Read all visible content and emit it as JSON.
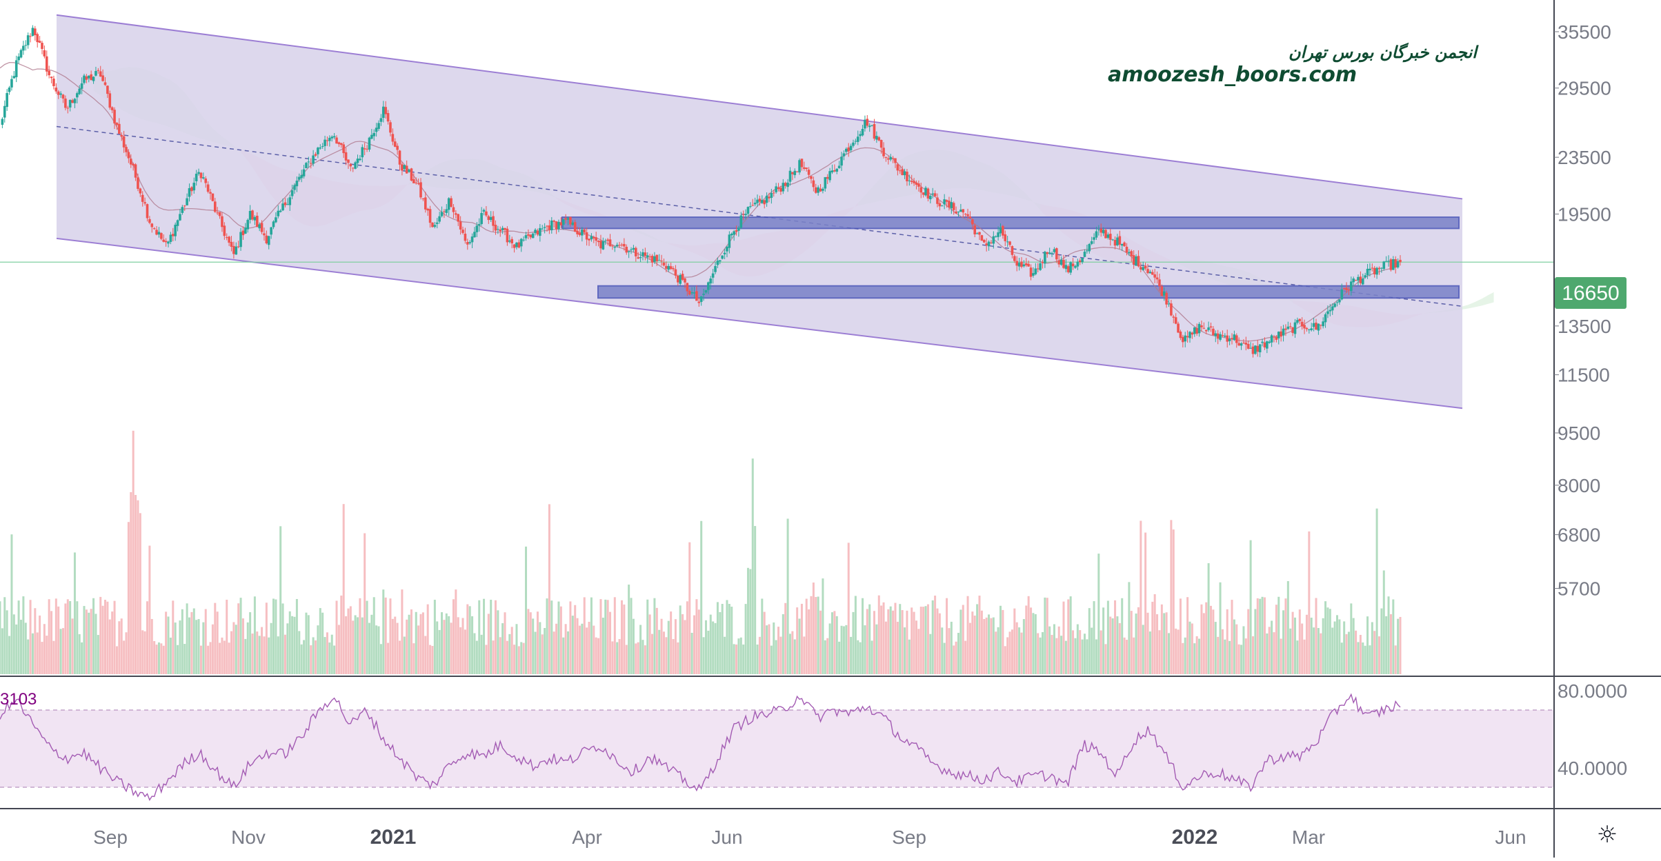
{
  "chart_data": {
    "type": "candlestick",
    "watermark": {
      "line1": "انجمن خبرگان بورس تهران",
      "line2": "amoozesh_boors.com"
    },
    "current_price": "16650",
    "current_price_value": 16650,
    "y_ticks": [
      "35500",
      "29500",
      "23500",
      "19500",
      "16650",
      "13500",
      "11500",
      "9500",
      "8000",
      "6800",
      "5700"
    ],
    "y_tick_values": [
      35500,
      29500,
      23500,
      19500,
      13500,
      11500,
      9500,
      8000,
      6800,
      5700
    ],
    "y_scale": "log",
    "x_ticks": [
      {
        "label": "Sep",
        "bold": false
      },
      {
        "label": "Nov",
        "bold": false
      },
      {
        "label": "2021",
        "bold": true
      },
      {
        "label": "Apr",
        "bold": false
      },
      {
        "label": "Jun",
        "bold": false
      },
      {
        "label": "Sep",
        "bold": false
      },
      {
        "label": "2022",
        "bold": true
      },
      {
        "label": "Mar",
        "bold": false
      },
      {
        "label": "Jun",
        "bold": false
      }
    ],
    "price_series_close": [
      26000,
      32000,
      36000,
      30500,
      27500,
      30200,
      31000,
      26000,
      22500,
      19000,
      17500,
      20000,
      22500,
      19500,
      17000,
      19500,
      18000,
      20000,
      22000,
      24000,
      25500,
      22500,
      24500,
      27500,
      23000,
      21500,
      18500,
      20500,
      17500,
      19500,
      18500,
      17500,
      18200,
      18800,
      19000,
      18200,
      17600,
      17800,
      17200,
      16900,
      16500,
      15500,
      14500,
      16500,
      18500,
      19800,
      20500,
      21500,
      23000,
      21000,
      22500,
      24500,
      26500,
      24000,
      22500,
      21500,
      20500,
      20000,
      19500,
      17500,
      18500,
      16500,
      16000,
      17500,
      16200,
      17000,
      18500,
      17800,
      16800,
      16200,
      14700,
      12800,
      13500,
      13100,
      13000,
      12400,
      12800,
      13200,
      13600,
      13400,
      14500,
      15500,
      16000,
      16400,
      16650
    ],
    "channel": {
      "upper_start": 37500,
      "upper_end": 20500,
      "lower_start": 18000,
      "lower_end": 10300,
      "mid_start": 26000,
      "mid_end": 14400
    },
    "zones": [
      {
        "low": 18600,
        "high": 19300
      },
      {
        "low": 14800,
        "high": 15400
      }
    ],
    "volume_max": 11000,
    "rsi": {
      "value_label": "3103",
      "upper_band": 70,
      "lower_band": 30,
      "ticks": [
        "80.0000",
        "40.0000"
      ],
      "tick_values": [
        80,
        40
      ],
      "series": [
        68,
        75,
        62,
        50,
        45,
        48,
        40,
        33,
        28,
        24,
        33,
        42,
        48,
        38,
        30,
        42,
        48,
        47,
        55,
        68,
        78,
        62,
        70,
        55,
        45,
        35,
        31,
        42,
        48,
        46,
        52,
        46,
        41,
        45,
        43,
        48,
        52,
        44,
        38,
        46,
        40,
        34,
        28,
        44,
        60,
        66,
        68,
        70,
        78,
        66,
        70,
        68,
        72,
        66,
        56,
        50,
        42,
        38,
        36,
        34,
        38,
        33,
        36,
        36,
        31,
        52,
        48,
        36,
        54,
        60,
        45,
        30,
        36,
        38,
        34,
        30,
        44,
        46,
        46,
        54,
        68,
        78,
        66,
        70,
        73
      ]
    },
    "colors": {
      "up": "#26a69a",
      "down": "#ef5350",
      "channel_fill": "#d7d1ea",
      "channel_line": "#9c7ed4",
      "zone_fill": "#7a82c8",
      "zone_stroke": "#4a55b8",
      "price_tag": "#4ea86e",
      "rsi_line": "#a35bb3",
      "rsi_band": "#f1e4f3"
    }
  }
}
